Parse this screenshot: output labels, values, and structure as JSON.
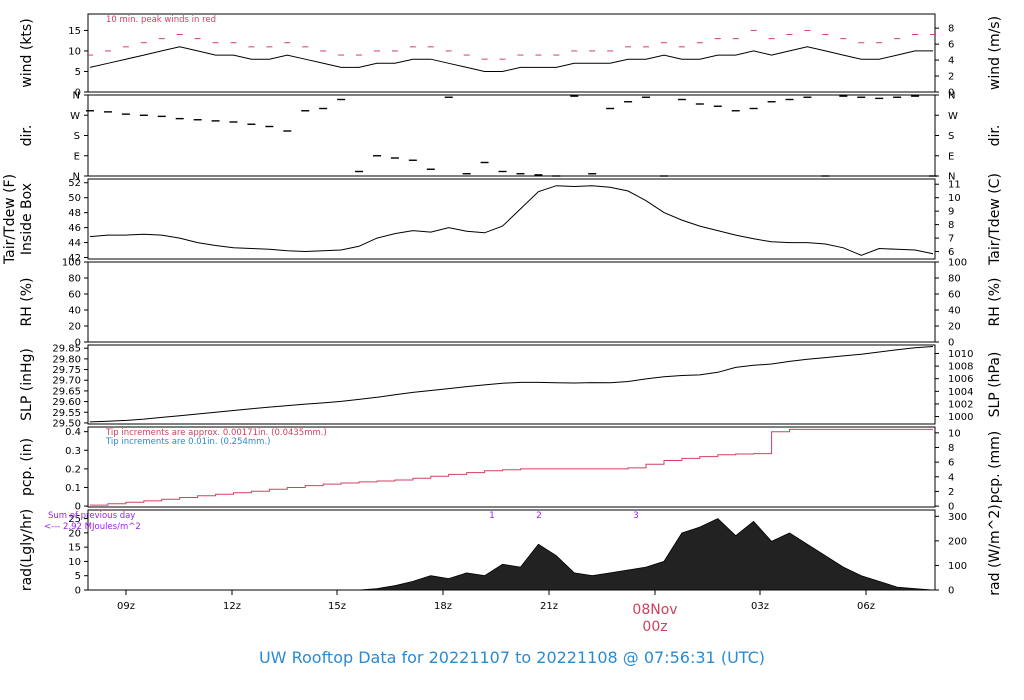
{
  "page": {
    "title": "UW Rooftop Data for 20221107  to  20221108 @ 07:56:31  (UTC)",
    "title_color": "#2a8bd0",
    "accent_red": "#d04060",
    "accent_blue": "#2a8bd0",
    "accent_purple": "#a020f0"
  },
  "chart_data": [
    {
      "type": "line",
      "panel": "wind",
      "ylabel_left": "wind (kts)",
      "ylabel_right": "wind (m/s)",
      "annotation": "10 min. peak winds in red",
      "yticks_left": [
        0,
        5,
        10,
        15
      ],
      "yticks_right": [
        0,
        2,
        4,
        6,
        8
      ],
      "ylim": [
        0,
        19
      ],
      "series": [
        {
          "values_kts": [
            6,
            7,
            8,
            9,
            10,
            11,
            10,
            9,
            9,
            8,
            8,
            9,
            8,
            7,
            6,
            6,
            7,
            7,
            8,
            8,
            7,
            6,
            5,
            5,
            6,
            6,
            6,
            7,
            7,
            7,
            8,
            8,
            9,
            8,
            8,
            9,
            9,
            10,
            9,
            10,
            11,
            10,
            9,
            8,
            8,
            9,
            10,
            10
          ]
        },
        {
          "name": "10 min. peak winds",
          "values_kts": [
            9,
            10,
            11,
            12,
            13,
            14,
            13,
            12,
            12,
            11,
            11,
            12,
            11,
            10,
            9,
            9,
            10,
            10,
            11,
            11,
            10,
            9,
            8,
            8,
            9,
            9,
            9,
            10,
            10,
            10,
            11,
            11,
            12,
            11,
            12,
            13,
            13,
            15,
            13,
            14,
            15,
            14,
            13,
            12,
            12,
            13,
            14,
            14
          ]
        }
      ]
    },
    {
      "type": "scatter",
      "panel": "dir",
      "ylabel_left": "dir.",
      "ylabel_right": "dir.",
      "yticks_left": [
        "N",
        "E",
        "S",
        "W",
        "N"
      ],
      "yticks_right": [
        "N",
        "E",
        "S",
        "W",
        "N"
      ],
      "values_deg": [
        290,
        285,
        275,
        270,
        265,
        255,
        250,
        245,
        240,
        230,
        220,
        200,
        290,
        300,
        340,
        20,
        90,
        80,
        70,
        30,
        350,
        10,
        60,
        20,
        10,
        5,
        0,
        355,
        10,
        300,
        330,
        350,
        0,
        340,
        320,
        310,
        290,
        300,
        330,
        340,
        350,
        0,
        355,
        350,
        345,
        350,
        355,
        0
      ]
    },
    {
      "type": "line",
      "panel": "temperature",
      "ylabel_left": "Tair/Tdew (F)",
      "ylabel_left_2": "Inside Box",
      "ylabel_right": "Tair/Tdew (C)",
      "yticks_left": [
        42,
        44,
        46,
        48,
        50,
        52
      ],
      "yticks_right": [
        6,
        7,
        8,
        9,
        10,
        11
      ],
      "ylim": [
        41.8,
        52.5
      ],
      "values_f": [
        44.8,
        45.0,
        45.0,
        45.1,
        45.0,
        44.6,
        44.0,
        43.6,
        43.3,
        43.2,
        43.1,
        42.9,
        42.8,
        42.9,
        43.0,
        43.5,
        44.6,
        45.2,
        45.6,
        45.4,
        46.0,
        45.5,
        45.3,
        46.2,
        48.5,
        50.8,
        51.6,
        51.5,
        51.6,
        51.4,
        50.9,
        49.6,
        48.0,
        47.0,
        46.2,
        45.6,
        45.0,
        44.5,
        44.1,
        44.0,
        44.0,
        43.8,
        43.3,
        42.3,
        43.2,
        43.1,
        43.0,
        42.5
      ]
    },
    {
      "type": "line",
      "panel": "rh",
      "ylabel_left": "RH (%)",
      "ylabel_right": "RH (%)",
      "yticks_left": [
        0,
        20,
        40,
        60,
        80,
        100
      ],
      "yticks_right": [
        0,
        20,
        40,
        60,
        80,
        100
      ],
      "ylim": [
        0,
        100
      ]
    },
    {
      "type": "line",
      "panel": "pressure",
      "ylabel_left": "SLP (inHg)",
      "ylabel_right": "SLP (hPa)",
      "yticks_left": [
        29.5,
        29.55,
        29.6,
        29.65,
        29.7,
        29.75,
        29.8,
        29.85
      ],
      "yticks_right": [
        1000,
        1002,
        1004,
        1006,
        1008,
        1010
      ],
      "ylim": [
        29.495,
        29.865
      ],
      "values_inhg": [
        29.505,
        29.508,
        29.512,
        29.518,
        29.526,
        29.534,
        29.542,
        29.55,
        29.558,
        29.566,
        29.574,
        29.581,
        29.588,
        29.594,
        29.601,
        29.61,
        29.62,
        29.632,
        29.643,
        29.652,
        29.661,
        29.67,
        29.678,
        29.686,
        29.69,
        29.69,
        29.688,
        29.687,
        29.689,
        29.688,
        29.694,
        29.706,
        29.716,
        29.722,
        29.725,
        29.737,
        29.76,
        29.77,
        29.776,
        29.788,
        29.798,
        29.806,
        29.814,
        29.822,
        29.832,
        29.843,
        29.852,
        29.858
      ]
    },
    {
      "type": "line",
      "panel": "precipitation",
      "ylabel_left": "pcp. (in)",
      "ylabel_right": "pcp. (mm)",
      "annotation_1": "Tip increments are approx. 0.00171in. (0.0435mm.)",
      "annotation_2": "Tip increments are 0.01in. (0.254mm.)",
      "yticks_left": [
        0.0,
        0.1,
        0.2,
        0.3,
        0.4
      ],
      "yticks_right": [
        0,
        2,
        4,
        6,
        8,
        10
      ],
      "ylim": [
        -0.005,
        0.425
      ],
      "values_in": [
        0.005,
        0.012,
        0.02,
        0.028,
        0.037,
        0.046,
        0.055,
        0.064,
        0.072,
        0.08,
        0.09,
        0.1,
        0.11,
        0.118,
        0.124,
        0.13,
        0.135,
        0.14,
        0.15,
        0.16,
        0.17,
        0.18,
        0.19,
        0.195,
        0.2,
        0.2,
        0.2,
        0.2,
        0.2,
        0.2,
        0.205,
        0.225,
        0.245,
        0.256,
        0.266,
        0.276,
        0.28,
        0.282,
        0.4,
        0.412,
        0.412,
        0.412,
        0.412,
        0.412,
        0.412,
        0.412,
        0.412,
        0.412
      ]
    },
    {
      "type": "area",
      "panel": "radiation",
      "ylabel_left": "rad(Lgly/hr)",
      "ylabel_right": "rad (W/m^2)",
      "annotation_1": "Sum of previous day",
      "annotation_2": "<--- 2.92 MJoules/m^2",
      "markers": [
        "1",
        "2",
        "3"
      ],
      "yticks_left": [
        0,
        5,
        10,
        15,
        20,
        25
      ],
      "yticks_right": [
        0,
        100,
        200,
        300
      ],
      "ylim": [
        0,
        28
      ],
      "values_lgly": [
        0,
        0,
        0,
        0,
        0,
        0,
        0,
        0,
        0,
        0,
        0,
        0,
        0,
        0,
        0,
        0,
        0.5,
        1.5,
        3,
        5,
        4,
        6,
        5,
        9,
        8,
        16,
        12,
        6,
        5,
        6,
        7,
        8,
        10,
        20,
        22,
        25,
        19,
        24,
        17,
        20,
        16,
        12,
        8,
        5,
        3,
        1,
        0.5,
        0
      ]
    }
  ],
  "xaxis": {
    "tick_labels": [
      "09z",
      "12z",
      "15z",
      "18z",
      "21z",
      "00z",
      "03z",
      "06z"
    ],
    "date_label": "08Nov"
  }
}
